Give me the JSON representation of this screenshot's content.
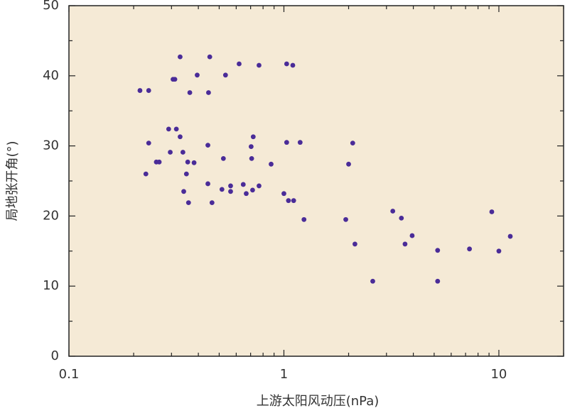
{
  "chart_data": {
    "type": "scatter",
    "x_label": "上游太阳风动压(nPa)",
    "y_label": "局地张开角(°)",
    "log_x": true,
    "xlim": [
      0.1,
      20
    ],
    "xticks": [
      0.1,
      1,
      10
    ],
    "x_minor_ticks": [
      0.2,
      0.3,
      0.4,
      0.5,
      0.6,
      0.7,
      0.8,
      0.9,
      2,
      3,
      4,
      5,
      6,
      7,
      8,
      9,
      20
    ],
    "ylim": [
      0,
      50
    ],
    "yticks": [
      0,
      10,
      20,
      30,
      40,
      50
    ],
    "y_minor_ticks": [
      5,
      15,
      25,
      35,
      45
    ],
    "background": "#f5ead6",
    "color": "#4a2c98",
    "x": [
      0.214,
      0.235,
      0.329,
      0.305,
      0.311,
      0.395,
      0.365,
      0.452,
      0.446,
      0.535,
      0.619,
      0.766,
      1.03,
      1.1,
      0.235,
      0.291,
      0.316,
      0.329,
      0.296,
      0.339,
      0.443,
      0.228,
      0.255,
      0.263,
      0.357,
      0.382,
      0.352,
      0.342,
      0.36,
      0.443,
      0.463,
      0.515,
      0.565,
      0.565,
      0.523,
      0.647,
      0.668,
      0.715,
      0.704,
      0.72,
      0.708,
      0.766,
      0.872,
      1.0,
      1.05,
      1.11,
      1.03,
      1.19,
      1.24,
      1.94,
      2.0,
      2.09,
      2.14,
      2.59,
      3.21,
      3.52,
      3.66,
      3.95,
      5.19,
      5.19,
      7.3,
      9.27,
      10.0,
      11.3
    ],
    "values": [
      37.9,
      37.9,
      42.7,
      39.5,
      39.5,
      40.1,
      37.6,
      42.7,
      37.6,
      40.1,
      41.7,
      41.5,
      41.7,
      41.5,
      30.4,
      32.4,
      32.4,
      31.3,
      29.1,
      29.1,
      30.1,
      26.0,
      27.7,
      27.7,
      27.7,
      27.6,
      26.0,
      23.5,
      21.9,
      24.6,
      21.9,
      23.8,
      24.3,
      23.5,
      28.2,
      24.5,
      23.2,
      23.7,
      29.9,
      31.3,
      28.2,
      24.3,
      27.4,
      23.2,
      22.2,
      22.2,
      30.5,
      30.5,
      19.5,
      19.5,
      27.4,
      30.4,
      16.0,
      10.7,
      20.7,
      19.7,
      16.0,
      17.2,
      15.1,
      10.7,
      15.3,
      20.6,
      15.0,
      17.1
    ]
  }
}
